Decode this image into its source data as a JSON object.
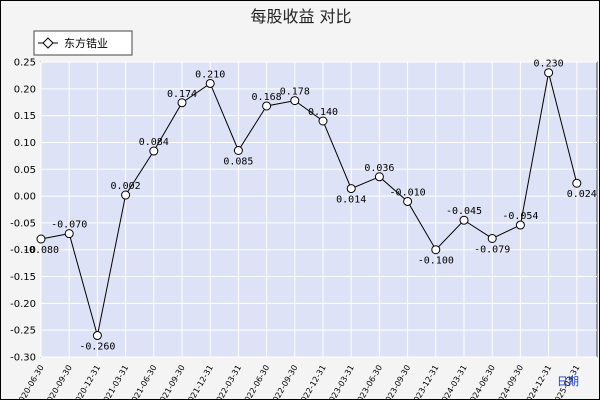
{
  "chart_data": {
    "type": "line",
    "title": "每股收益  对比",
    "xlabel": "日期",
    "ylabel": "",
    "ylim": [
      -0.3,
      0.25
    ],
    "y_ticks": [
      0.25,
      0.2,
      0.15,
      0.1,
      0.05,
      0.0,
      -0.05,
      -0.1,
      -0.15,
      -0.2,
      -0.25,
      -0.3
    ],
    "y_tick_labels": [
      "0.25",
      "0.20",
      "0.15",
      "0.10",
      "0.05",
      "0.00",
      "-0.05",
      "-0.10",
      "-0.15",
      "-0.20",
      "-0.25",
      "-0.30"
    ],
    "grid": true,
    "legend_position": "top-left",
    "categories": [
      "2020-06-30",
      "2020-09-30",
      "2020-12-31",
      "2021-03-31",
      "2021-06-30",
      "2021-09-30",
      "2021-12-31",
      "2022-03-31",
      "2022-06-30",
      "2022-09-30",
      "2022-12-31",
      "2023-03-31",
      "2023-06-30",
      "2023-09-30",
      "2023-12-31",
      "2024-03-31",
      "2024-06-30",
      "2024-09-30",
      "2024-12-31",
      "2025-03-31"
    ],
    "series": [
      {
        "name": "东方锆业",
        "values": [
          -0.08,
          -0.07,
          -0.26,
          0.002,
          0.084,
          0.174,
          0.21,
          0.085,
          0.168,
          0.178,
          0.14,
          0.014,
          0.036,
          -0.01,
          -0.1,
          -0.045,
          -0.079,
          -0.054,
          0.23,
          0.024
        ],
        "labels": [
          "-0.080",
          "-0.070",
          "-0.260",
          "0.002",
          "0.084",
          "0.174",
          "0.210",
          "0.085",
          "0.168",
          "0.178",
          "0.140",
          "0.014",
          "0.036",
          "-0.010",
          "-0.100",
          "-0.045",
          "-0.079",
          "-0.054",
          "0.230",
          "0.024"
        ]
      }
    ],
    "colors": {
      "background": "#f4f4f4",
      "plot_background": "#dde2f6",
      "grid": "#ffffff",
      "line": "#000000",
      "marker_fill": "#ffffff",
      "xlabel": "#1a3cc8"
    }
  }
}
